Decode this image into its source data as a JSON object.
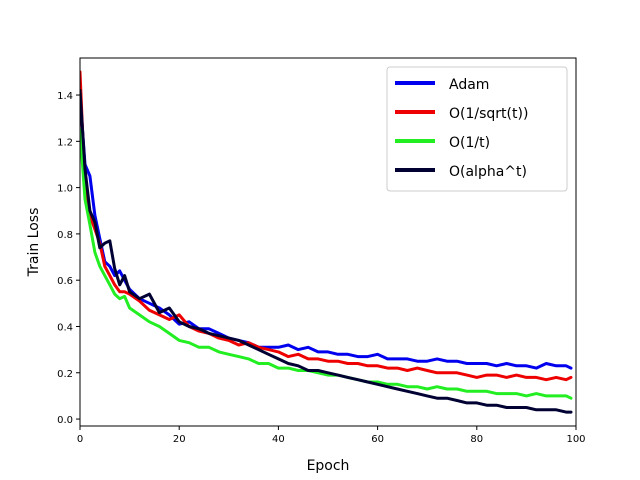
{
  "chart_data": {
    "type": "line",
    "title": "",
    "xlabel": "Epoch",
    "ylabel": "Train Loss",
    "xlim": [
      0,
      100
    ],
    "ylim": [
      -0.03,
      1.56
    ],
    "xticks": [
      0,
      20,
      40,
      60,
      80,
      100
    ],
    "yticks": [
      0.0,
      0.2,
      0.4,
      0.6,
      0.8,
      1.0,
      1.2,
      1.4
    ],
    "ytick_labels": [
      "0.0",
      "0.2",
      "0.4",
      "0.6",
      "0.8",
      "1.0",
      "1.2",
      "1.4"
    ],
    "grid": false,
    "legend_position": "top-right",
    "series": [
      {
        "name": "Adam",
        "color": "#0000ee",
        "x": [
          0,
          1,
          2,
          3,
          4,
          5,
          6,
          7,
          8,
          9,
          10,
          12,
          14,
          16,
          18,
          20,
          22,
          24,
          26,
          28,
          30,
          32,
          34,
          36,
          38,
          40,
          42,
          44,
          46,
          48,
          50,
          52,
          54,
          56,
          58,
          60,
          62,
          64,
          66,
          68,
          70,
          72,
          74,
          76,
          78,
          80,
          82,
          84,
          86,
          88,
          90,
          92,
          94,
          96,
          98,
          99
        ],
        "y": [
          1.4,
          1.1,
          1.05,
          0.88,
          0.78,
          0.68,
          0.66,
          0.62,
          0.64,
          0.6,
          0.56,
          0.52,
          0.5,
          0.48,
          0.45,
          0.41,
          0.42,
          0.39,
          0.39,
          0.37,
          0.35,
          0.34,
          0.33,
          0.31,
          0.31,
          0.31,
          0.32,
          0.3,
          0.31,
          0.29,
          0.29,
          0.28,
          0.28,
          0.27,
          0.27,
          0.28,
          0.26,
          0.26,
          0.26,
          0.25,
          0.25,
          0.26,
          0.25,
          0.25,
          0.24,
          0.24,
          0.24,
          0.23,
          0.24,
          0.23,
          0.23,
          0.22,
          0.24,
          0.23,
          0.23,
          0.22
        ]
      },
      {
        "name": "O(1/sqrt(t))",
        "color": "#ee0000",
        "x": [
          0,
          1,
          2,
          3,
          4,
          5,
          6,
          7,
          8,
          9,
          10,
          12,
          14,
          16,
          18,
          20,
          22,
          24,
          26,
          28,
          30,
          32,
          34,
          36,
          38,
          40,
          42,
          44,
          46,
          48,
          50,
          52,
          54,
          56,
          58,
          60,
          62,
          64,
          66,
          68,
          70,
          72,
          74,
          76,
          78,
          80,
          82,
          84,
          86,
          88,
          90,
          92,
          94,
          96,
          98,
          99
        ],
        "y": [
          1.5,
          1.0,
          0.88,
          0.82,
          0.76,
          0.66,
          0.62,
          0.58,
          0.55,
          0.55,
          0.54,
          0.51,
          0.47,
          0.45,
          0.43,
          0.45,
          0.4,
          0.38,
          0.37,
          0.35,
          0.34,
          0.32,
          0.33,
          0.31,
          0.3,
          0.29,
          0.27,
          0.28,
          0.26,
          0.26,
          0.25,
          0.25,
          0.24,
          0.24,
          0.23,
          0.23,
          0.22,
          0.22,
          0.21,
          0.22,
          0.21,
          0.2,
          0.2,
          0.2,
          0.19,
          0.18,
          0.19,
          0.19,
          0.18,
          0.19,
          0.18,
          0.18,
          0.17,
          0.18,
          0.17,
          0.18
        ]
      },
      {
        "name": "O(1/t)",
        "color": "#22ee22",
        "x": [
          0,
          1,
          2,
          3,
          4,
          5,
          6,
          7,
          8,
          9,
          10,
          12,
          14,
          16,
          18,
          20,
          22,
          24,
          26,
          28,
          30,
          32,
          34,
          36,
          38,
          40,
          42,
          44,
          46,
          48,
          50,
          52,
          54,
          56,
          58,
          60,
          62,
          64,
          66,
          68,
          70,
          72,
          74,
          76,
          78,
          80,
          82,
          84,
          86,
          88,
          90,
          92,
          94,
          96,
          98,
          99
        ],
        "y": [
          1.25,
          0.95,
          0.84,
          0.72,
          0.66,
          0.62,
          0.58,
          0.54,
          0.52,
          0.53,
          0.48,
          0.45,
          0.42,
          0.4,
          0.37,
          0.34,
          0.33,
          0.31,
          0.31,
          0.29,
          0.28,
          0.27,
          0.26,
          0.24,
          0.24,
          0.22,
          0.22,
          0.21,
          0.21,
          0.2,
          0.19,
          0.19,
          0.18,
          0.17,
          0.16,
          0.16,
          0.15,
          0.15,
          0.14,
          0.14,
          0.13,
          0.14,
          0.13,
          0.13,
          0.12,
          0.12,
          0.12,
          0.11,
          0.11,
          0.11,
          0.1,
          0.11,
          0.1,
          0.1,
          0.1,
          0.09
        ]
      },
      {
        "name": "O(alpha^t)",
        "color": "#000033",
        "x": [
          0,
          1,
          2,
          3,
          4,
          5,
          6,
          7,
          8,
          9,
          10,
          12,
          14,
          16,
          18,
          20,
          22,
          24,
          26,
          28,
          30,
          32,
          34,
          36,
          38,
          40,
          42,
          44,
          46,
          48,
          50,
          52,
          54,
          56,
          58,
          60,
          62,
          64,
          66,
          68,
          70,
          72,
          74,
          76,
          78,
          80,
          82,
          84,
          86,
          88,
          90,
          92,
          94,
          96,
          98,
          99
        ],
        "y": [
          1.42,
          1.08,
          0.9,
          0.85,
          0.74,
          0.76,
          0.77,
          0.65,
          0.58,
          0.62,
          0.55,
          0.52,
          0.54,
          0.46,
          0.48,
          0.42,
          0.4,
          0.39,
          0.37,
          0.36,
          0.35,
          0.34,
          0.32,
          0.3,
          0.28,
          0.26,
          0.24,
          0.23,
          0.21,
          0.21,
          0.2,
          0.19,
          0.18,
          0.17,
          0.16,
          0.15,
          0.14,
          0.13,
          0.12,
          0.11,
          0.1,
          0.09,
          0.09,
          0.08,
          0.07,
          0.07,
          0.06,
          0.06,
          0.05,
          0.05,
          0.05,
          0.04,
          0.04,
          0.04,
          0.03,
          0.03
        ]
      }
    ]
  }
}
